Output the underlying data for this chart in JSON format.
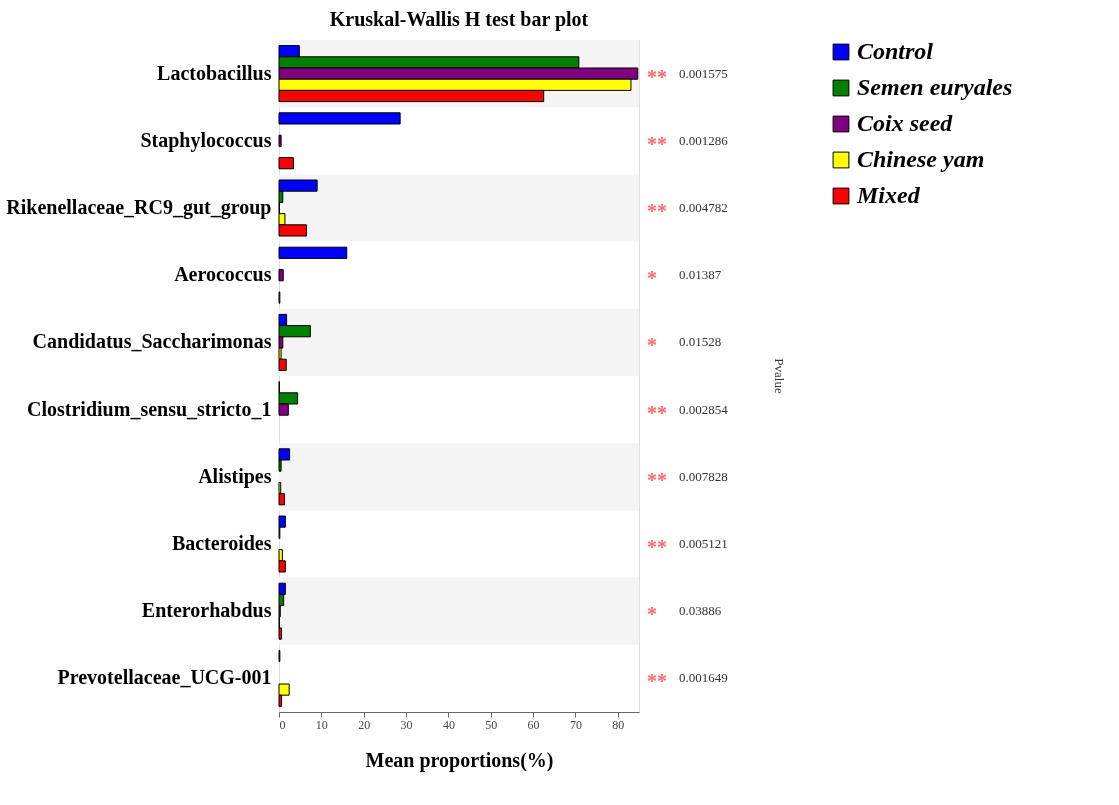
{
  "chart_data": {
    "type": "bar",
    "orientation": "horizontal",
    "title": "Kruskal-Wallis H test bar plot",
    "xlabel": "Mean proportions(%)",
    "categories": [
      "Lactobacillus",
      "Staphylococcus",
      "Rikenellaceae_RC9_gut_group",
      "Aerococcus",
      "Candidatus_Saccharimonas",
      "Clostridium_sensu_stricto_1",
      "Alistipes",
      "Bacteroides",
      "Enterorhabdus",
      "Prevotellaceae_UCG-001"
    ],
    "series": [
      {
        "name": "Control",
        "color": "#0000ff",
        "values": [
          4.8,
          28.6,
          9.0,
          16.0,
          1.8,
          0.1,
          2.5,
          1.5,
          1.5,
          0.2
        ]
      },
      {
        "name": "Semen euryales",
        "color": "#008000",
        "values": [
          70.8,
          0,
          0.9,
          0,
          7.4,
          4.4,
          0.5,
          0.2,
          1.1,
          0
        ]
      },
      {
        "name": "Coix seed",
        "color": "#800080",
        "values": [
          84.7,
          0.5,
          0.1,
          1.0,
          0.9,
          2.2,
          0,
          0,
          0.3,
          0
        ]
      },
      {
        "name": "Chinese yam",
        "color": "#ffff00",
        "values": [
          83.1,
          0,
          1.4,
          0,
          0.5,
          0,
          0.4,
          0.8,
          0.1,
          2.4
        ]
      },
      {
        "name": "Mixed",
        "color": "#ff0000",
        "values": [
          62.5,
          3.4,
          6.5,
          0.2,
          1.7,
          0,
          1.3,
          1.5,
          0.6,
          0.6
        ]
      }
    ],
    "xlim": [
      0,
      85
    ],
    "xticks": [
      0,
      10,
      20,
      30,
      40,
      50,
      60,
      70,
      80
    ],
    "legend": "right",
    "annotations": [
      "**",
      "0.001575",
      "**",
      "0.001286",
      "**",
      "0.004782",
      "*",
      "0.01387",
      "*",
      "0.01528",
      "**",
      "0.002854",
      "**",
      "0.007828",
      "**",
      "0.005121",
      "*",
      "0.03886",
      "**",
      "0.001649",
      "Pvalue"
    ]
  }
}
